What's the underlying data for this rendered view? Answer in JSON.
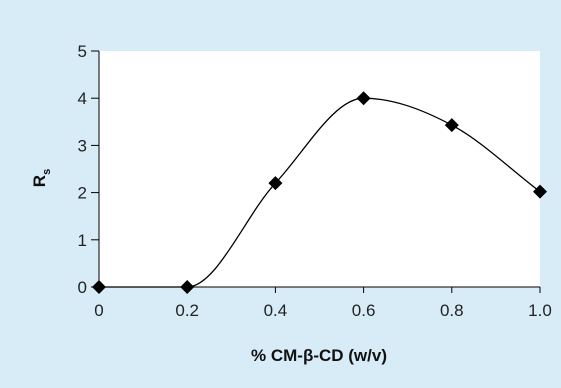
{
  "chart_data": {
    "type": "line",
    "title": "",
    "xlabel": "% CM-β-CD (w/v)",
    "ylabel_main": "R",
    "ylabel_sub": "s",
    "xlim": [
      0,
      1.0
    ],
    "ylim": [
      0,
      5
    ],
    "xticks": [
      "0",
      "0.2",
      "0.4",
      "0.6",
      "0.8",
      "1.0"
    ],
    "yticks": [
      "0",
      "1",
      "2",
      "3",
      "4",
      "5"
    ],
    "grid": false,
    "legend": "none",
    "series": [
      {
        "x": [
          0,
          0.2,
          0.4,
          0.6,
          0.8,
          1.0
        ],
        "values": [
          0,
          0,
          2.2,
          4.0,
          3.43,
          2.02
        ],
        "marker": "diamond",
        "line": "smooth"
      }
    ],
    "colors": {
      "background": "#d8ecf7",
      "plot_area": "#ffffff",
      "line": "#000000"
    }
  }
}
